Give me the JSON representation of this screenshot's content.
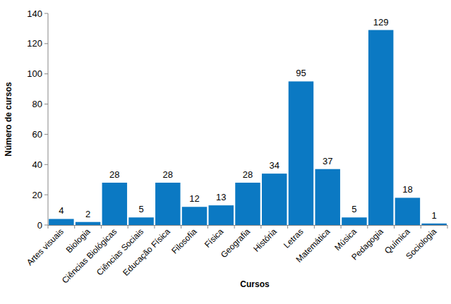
{
  "chart_data": {
    "type": "bar",
    "x_label": "Cursos",
    "y_label": "Número de cursos",
    "categories": [
      "Artes visuais",
      "Biologia",
      "Ciências Biológicas",
      "Ciências Sociais",
      "Educação Física",
      "Filosofia",
      "Física",
      "Geografia",
      "História",
      "Letras",
      "Matemática",
      "Música",
      "Pedagogia",
      "Química",
      "Sociologia"
    ],
    "values": [
      4,
      2,
      28,
      5,
      28,
      12,
      13,
      28,
      34,
      95,
      37,
      5,
      129,
      18,
      1
    ],
    "color": "#0b79c3",
    "ylim": [
      0,
      140
    ],
    "yticks": [
      0,
      20,
      40,
      60,
      80,
      100,
      120,
      140
    ],
    "grid": false,
    "data_labels": true
  }
}
